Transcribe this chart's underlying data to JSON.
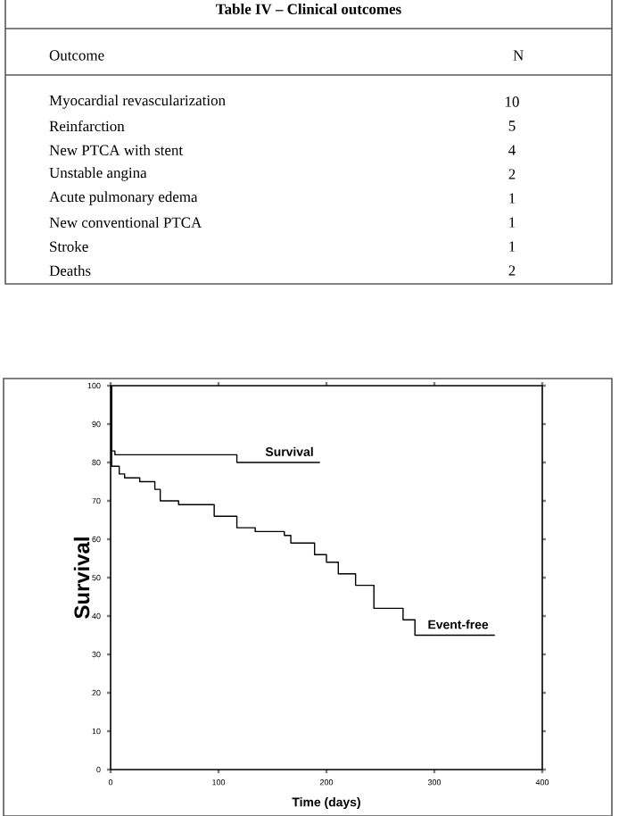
{
  "chart_data": [
    {
      "type": "other",
      "title": "Table IV – Clinical outcomes",
      "annotations": [
        "Outcome",
        "N"
      ],
      "categories": [
        "Myocardial revascularization",
        "Reinfarction",
        "New PTCA with stent",
        "Unstable angina",
        "Acute pulmonary edema",
        "New conventional PTCA",
        "Stroke",
        "Deaths"
      ],
      "values": [
        10,
        5,
        4,
        2,
        1,
        1,
        1,
        2
      ],
      "data_labels": true
    },
    {
      "type": "step",
      "xlabel": "Time (days)",
      "ylabel": "Survival",
      "xlim": [
        0,
        400
      ],
      "ylim": [
        0,
        100
      ],
      "xticks": [
        0,
        100,
        200,
        300,
        400
      ],
      "yticks": [
        0,
        10,
        20,
        30,
        40,
        50,
        60,
        70,
        80,
        90,
        100
      ],
      "series": [
        {
          "name": "Survival",
          "color": "#000000",
          "x": [
            0,
            1,
            4,
            117,
            194
          ],
          "values": [
            100,
            83,
            82,
            80,
            80
          ]
        },
        {
          "name": "Event-free",
          "color": "#000000",
          "x": [
            0,
            1,
            8,
            13,
            27,
            41,
            46,
            63,
            96,
            117,
            134,
            161,
            167,
            189,
            200,
            211,
            227,
            244,
            271,
            282,
            356
          ],
          "values": [
            100,
            79,
            77,
            76,
            75,
            73,
            70,
            69,
            66,
            63,
            62,
            61,
            59,
            56,
            54,
            51,
            48,
            42,
            39,
            35,
            35
          ]
        }
      ]
    }
  ]
}
